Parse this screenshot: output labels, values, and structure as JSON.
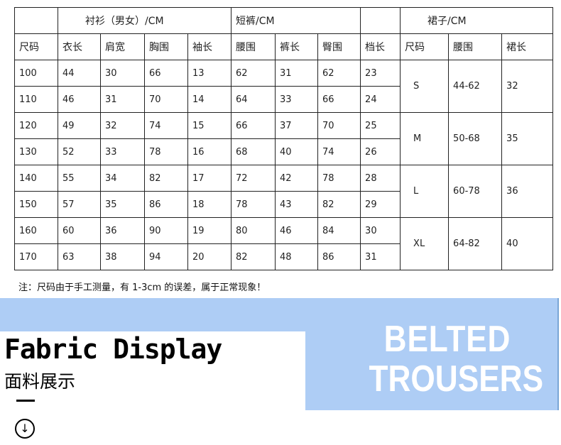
{
  "table": {
    "groups": {
      "shirt": "衬衫（男女）/CM",
      "shorts": "短裤/CM",
      "skirt": "裙子/CM"
    },
    "headers": [
      "尺码",
      "衣长",
      "肩宽",
      "胸围",
      "袖长",
      "腰围",
      "裤长",
      "臀围",
      "档长",
      "尺码",
      "腰围",
      "裙长"
    ],
    "rows": [
      [
        "100",
        "44",
        "30",
        "66",
        "13",
        "62",
        "31",
        "62",
        "23"
      ],
      [
        "110",
        "46",
        "31",
        "70",
        "14",
        "64",
        "33",
        "66",
        "24"
      ],
      [
        "120",
        "49",
        "32",
        "74",
        "15",
        "66",
        "37",
        "70",
        "25"
      ],
      [
        "130",
        "52",
        "33",
        "78",
        "16",
        "68",
        "40",
        "74",
        "26"
      ],
      [
        "140",
        "55",
        "34",
        "82",
        "17",
        "72",
        "42",
        "78",
        "28"
      ],
      [
        "150",
        "57",
        "35",
        "86",
        "18",
        "78",
        "43",
        "82",
        "29"
      ],
      [
        "160",
        "60",
        "36",
        "90",
        "19",
        "80",
        "46",
        "84",
        "30"
      ],
      [
        "170",
        "63",
        "38",
        "94",
        "20",
        "82",
        "48",
        "86",
        "31"
      ]
    ],
    "skirt_rows": [
      [
        "S",
        "44-62",
        "32"
      ],
      [
        "M",
        "50-68",
        "35"
      ],
      [
        "L",
        "60-78",
        "36"
      ],
      [
        "XL",
        "64-82",
        "40"
      ]
    ]
  },
  "note": "注：尺码由于手工测量，有 1-3cm 的误差，属于正常现象！",
  "section": {
    "title_en": "Fabric Display",
    "title_cn": "面料展示",
    "down_icon": "arrow-down-circle-icon"
  },
  "promo": {
    "line1": "BELTED",
    "line2": "TROUSERS"
  },
  "colors": {
    "band": "#aecdf5",
    "promo_text": "#ffffff"
  }
}
